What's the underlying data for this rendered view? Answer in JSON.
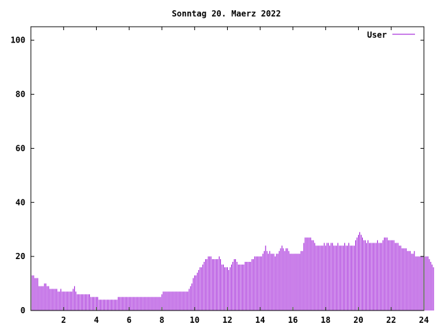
{
  "chart_data": {
    "type": "bar",
    "title": "Sonntag 20. Maerz 2022",
    "xlabel": "",
    "ylabel": "",
    "xlim": [
      0,
      24
    ],
    "ylim": [
      0,
      105
    ],
    "x_ticks": [
      "2",
      "4",
      "6",
      "8",
      "10",
      "12",
      "14",
      "16",
      "18",
      "20",
      "22",
      "24"
    ],
    "y_ticks": [
      "0",
      "20",
      "40",
      "60",
      "80",
      "100"
    ],
    "grid": false,
    "legend": "top-right",
    "series": [
      {
        "name": "User",
        "color": "#9400d3",
        "step_minutes": 5,
        "values": [
          12,
          13,
          13,
          12,
          12,
          12,
          9,
          9,
          9,
          9,
          10,
          10,
          9,
          9,
          8,
          8,
          8,
          8,
          8,
          8,
          7,
          7,
          8,
          7,
          7,
          7,
          7,
          7,
          7,
          7,
          7,
          8,
          9,
          7,
          6,
          6,
          6,
          6,
          6,
          6,
          6,
          6,
          6,
          6,
          5,
          5,
          5,
          5,
          5,
          5,
          4,
          4,
          4,
          4,
          4,
          4,
          4,
          4,
          4,
          4,
          4,
          4,
          4,
          4,
          5,
          5,
          5,
          5,
          5,
          5,
          5,
          5,
          5,
          5,
          5,
          5,
          5,
          5,
          5,
          5,
          5,
          5,
          5,
          5,
          5,
          5,
          5,
          5,
          5,
          5,
          5,
          5,
          5,
          5,
          5,
          5,
          6,
          7,
          7,
          7,
          7,
          7,
          7,
          7,
          7,
          7,
          7,
          7,
          7,
          7,
          7,
          7,
          7,
          7,
          7,
          7,
          8,
          9,
          10,
          12,
          13,
          13,
          14,
          15,
          16,
          16,
          17,
          18,
          19,
          19,
          20,
          20,
          20,
          19,
          19,
          19,
          19,
          19,
          20,
          19,
          17,
          17,
          16,
          16,
          16,
          15,
          16,
          17,
          18,
          19,
          19,
          18,
          17,
          17,
          17,
          17,
          17,
          18,
          18,
          18,
          18,
          18,
          19,
          19,
          20,
          20,
          20,
          20,
          20,
          20,
          21,
          22,
          24,
          22,
          21,
          22,
          21,
          21,
          21,
          20,
          21,
          21,
          22,
          23,
          24,
          23,
          22,
          23,
          23,
          22,
          21,
          21,
          21,
          21,
          21,
          21,
          21,
          21,
          22,
          22,
          25,
          27,
          27,
          27,
          27,
          27,
          26,
          26,
          25,
          24,
          24,
          24,
          24,
          24,
          24,
          25,
          24,
          25,
          25,
          24,
          25,
          25,
          24,
          24,
          24,
          25,
          24,
          24,
          24,
          24,
          25,
          24,
          24,
          25,
          24,
          24,
          24,
          24,
          26,
          27,
          28,
          29,
          28,
          27,
          26,
          26,
          25,
          26,
          25,
          25,
          25,
          25,
          25,
          25,
          26,
          25,
          25,
          25,
          26,
          27,
          27,
          27,
          26,
          26,
          26,
          26,
          26,
          25,
          25,
          25,
          24,
          24,
          23,
          23,
          23,
          23,
          22,
          22,
          22,
          21,
          21,
          22,
          20,
          20,
          20,
          20,
          20,
          20,
          20,
          20,
          20,
          20,
          19,
          18,
          17,
          16
        ]
      }
    ]
  }
}
